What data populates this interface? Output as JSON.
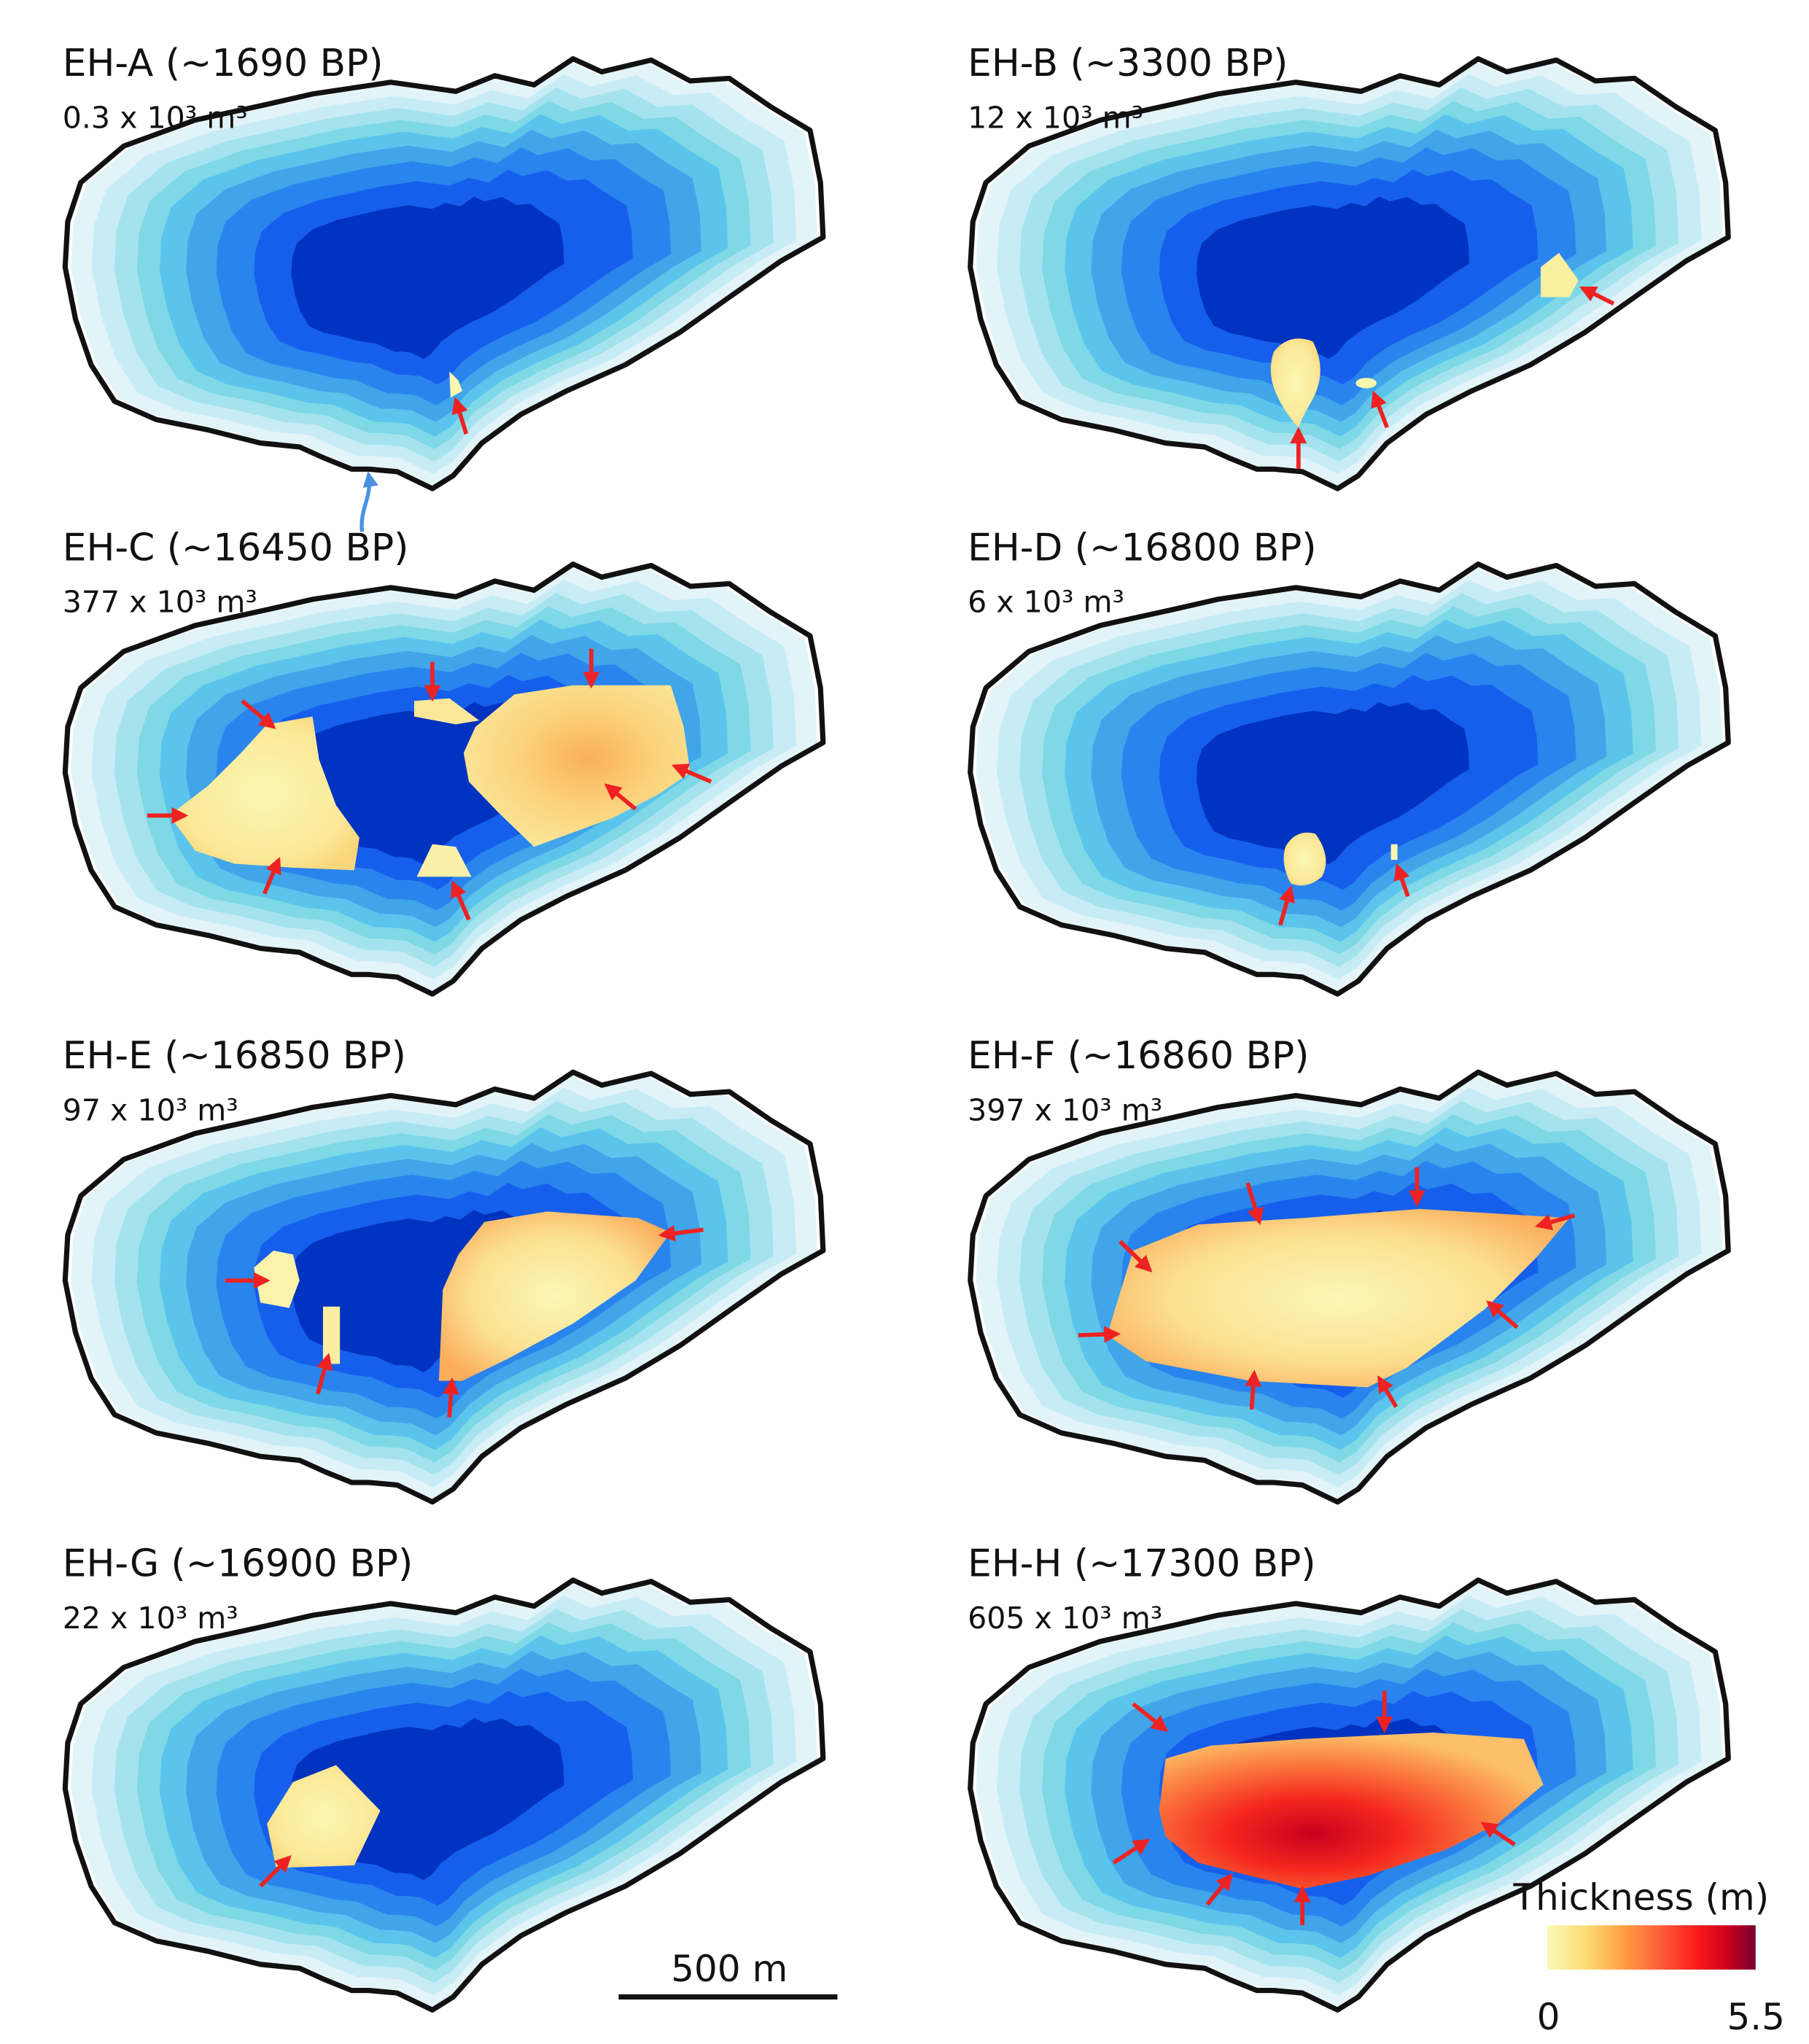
{
  "panels": [
    {
      "id": "EH-A",
      "title": "EH-A (~1690 BP)",
      "volume": "0.3 x 10³ m³"
    },
    {
      "id": "EH-B",
      "title": "EH-B (~3300 BP)",
      "volume": "12 x 10³ m³"
    },
    {
      "id": "EH-C",
      "title": "EH-C (~16450 BP)",
      "volume": "377 x 10³ m³"
    },
    {
      "id": "EH-D",
      "title": "EH-D (~16800 BP)",
      "volume": "6 x 10³ m³"
    },
    {
      "id": "EH-E",
      "title": "EH-E (~16850 BP)",
      "volume": "97 x 10³ m³"
    },
    {
      "id": "EH-F",
      "title": "EH-F (~16860 BP)",
      "volume": "397 x 10³ m³"
    },
    {
      "id": "EH-G",
      "title": "EH-G (~16900 BP)",
      "volume": "22 x 10³ m³"
    },
    {
      "id": "EH-H",
      "title": "EH-H (~17300 BP)",
      "volume": "605 x 10³ m³"
    }
  ],
  "legend": {
    "title": "Thickness (m)",
    "min_label": "0",
    "max_label": "5.5",
    "colors": [
      "#fbf9b8",
      "#fcd96f",
      "#fd9a42",
      "#fd5b3a",
      "#fb1a1a",
      "#c9001e",
      "#740030"
    ]
  },
  "scale_bar": {
    "label": "500 m"
  },
  "bathymetry_colors": [
    "#e3f4f9",
    "#c8ecf6",
    "#a4e3ee",
    "#7ed8e6",
    "#5bc4ec",
    "#40a5e9",
    "#2a84ee",
    "#165fec",
    "#0033c0"
  ]
}
